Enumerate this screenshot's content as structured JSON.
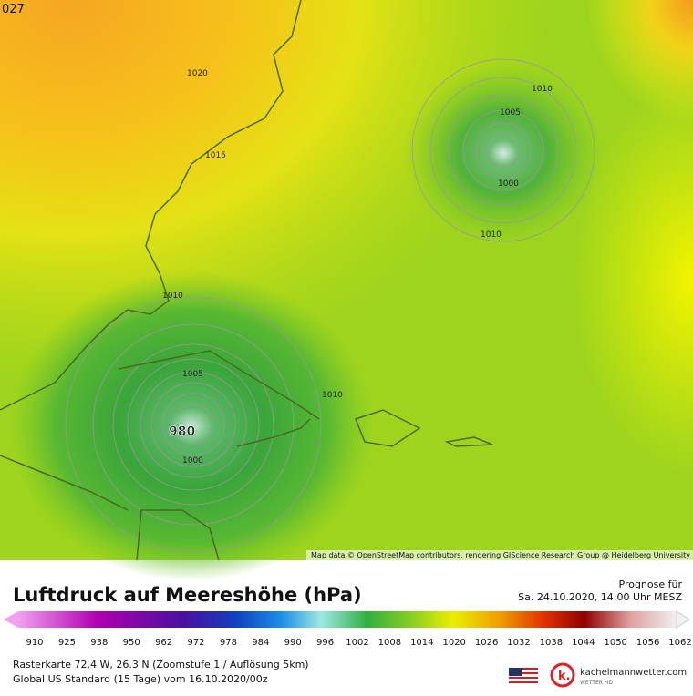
{
  "map": {
    "frame_label": "027",
    "isobar_labels": [
      "1020",
      "1015",
      "1010",
      "1005",
      "1000",
      "1010",
      "1010",
      "1005",
      "980",
      "1000",
      "1010"
    ],
    "attribution": "Map data © OpenStreetMap contributors, rendering GIScience Research Group @ Heidelberg University"
  },
  "legend": {
    "title": "Luftdruck auf Meereshöhe (hPa)",
    "forecast_label": "Prognose für",
    "forecast_time": "Sa. 24.10.2020, 14:00 Uhr MESZ",
    "ticks": [
      "910",
      "925",
      "938",
      "950",
      "962",
      "972",
      "978",
      "984",
      "990",
      "996",
      "1002",
      "1008",
      "1014",
      "1020",
      "1026",
      "1032",
      "1038",
      "1044",
      "1050",
      "1056",
      "1062"
    ]
  },
  "footer": {
    "line1": "Rasterkarte 72.4 W, 26.3 N (Zoomstufe 1 / Auflösung 5km)",
    "line2": "Global US Standard (15 Tage) vom 16.10.2020/00z",
    "brand": "kachelmannwetter.com",
    "brand_sub": "WETTER HD"
  }
}
